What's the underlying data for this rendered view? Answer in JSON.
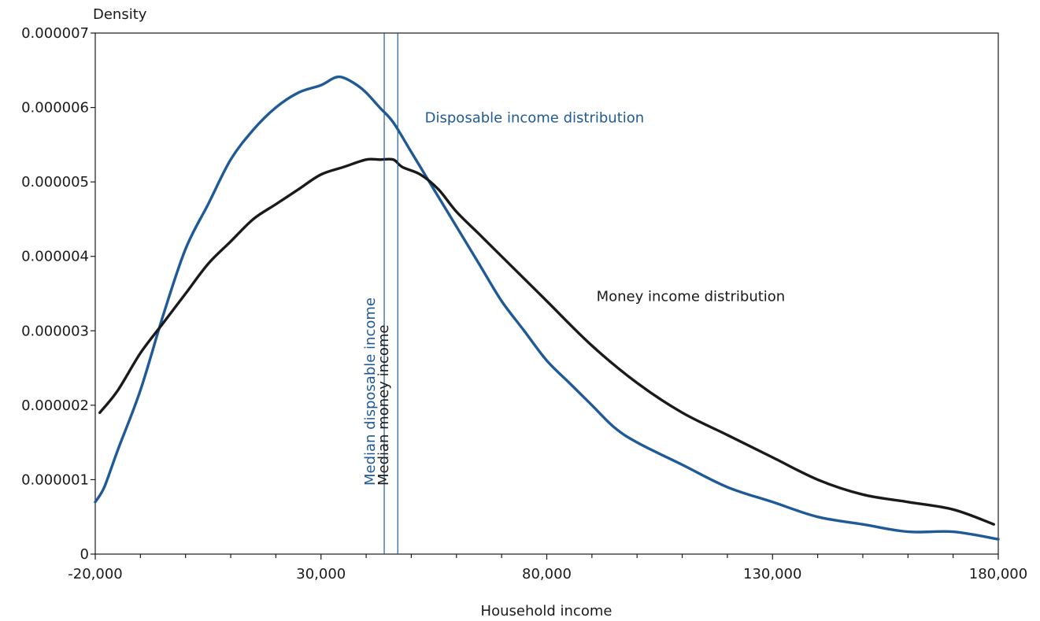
{
  "chart_data": {
    "type": "line",
    "title": "",
    "xlabel": "Household income",
    "ylabel": "Density",
    "xlim": [
      -20000,
      180000
    ],
    "ylim": [
      0,
      7e-06
    ],
    "x_ticks": [
      -20000,
      30000,
      80000,
      130000,
      180000
    ],
    "x_tick_labels": [
      "-20,000",
      "30,000",
      "80,000",
      "130,000",
      "180,000"
    ],
    "y_ticks": [
      0,
      1e-06,
      2e-06,
      3e-06,
      4e-06,
      5e-06,
      6e-06,
      7e-06
    ],
    "y_tick_labels": [
      "0",
      "0.000001",
      "0.000002",
      "0.000003",
      "0.000004",
      "0.000005",
      "0.000006",
      "0.000007"
    ],
    "grid": false,
    "legend": "none",
    "series": [
      {
        "name": "Disposable income distribution",
        "color": "#1f5a96",
        "x": [
          -20000,
          -18000,
          -15000,
          -10000,
          -5000,
          0,
          5000,
          10000,
          15000,
          20000,
          25000,
          30000,
          33000,
          35000,
          38000,
          40000,
          43000,
          46000,
          50000,
          55000,
          60000,
          65000,
          70000,
          75000,
          80000,
          85000,
          90000,
          95000,
          100000,
          110000,
          120000,
          130000,
          140000,
          150000,
          160000,
          170000,
          180000
        ],
        "y": [
          7e-07,
          9e-07,
          1.4e-06,
          2.2e-06,
          3.2e-06,
          4.1e-06,
          4.7e-06,
          5.3e-06,
          5.7e-06,
          6e-06,
          6.2e-06,
          6.3e-06,
          6.4e-06,
          6.4e-06,
          6.3e-06,
          6.2e-06,
          6e-06,
          5.8e-06,
          5.4e-06,
          4.9e-06,
          4.4e-06,
          3.9e-06,
          3.4e-06,
          3e-06,
          2.6e-06,
          2.3e-06,
          2e-06,
          1.7e-06,
          1.5e-06,
          1.2e-06,
          9e-07,
          7e-07,
          5e-07,
          4e-07,
          3e-07,
          3e-07,
          2e-07
        ]
      },
      {
        "name": "Money income distribution",
        "color": "#1a1a1a",
        "x": [
          -19000,
          -15000,
          -10000,
          -5000,
          0,
          5000,
          10000,
          15000,
          20000,
          25000,
          30000,
          35000,
          40000,
          43000,
          46000,
          48000,
          52000,
          56000,
          60000,
          65000,
          70000,
          75000,
          80000,
          90000,
          100000,
          110000,
          120000,
          130000,
          140000,
          150000,
          160000,
          170000,
          179000
        ],
        "y": [
          1.9e-06,
          2.2e-06,
          2.7e-06,
          3.1e-06,
          3.5e-06,
          3.9e-06,
          4.2e-06,
          4.5e-06,
          4.7e-06,
          4.9e-06,
          5.1e-06,
          5.2e-06,
          5.3e-06,
          5.3e-06,
          5.3e-06,
          5.2e-06,
          5.1e-06,
          4.9e-06,
          4.6e-06,
          4.3e-06,
          4e-06,
          3.7e-06,
          3.4e-06,
          2.8e-06,
          2.3e-06,
          1.9e-06,
          1.6e-06,
          1.3e-06,
          1e-06,
          8e-07,
          7e-07,
          6e-07,
          4e-07
        ]
      }
    ],
    "annotations": [
      {
        "text": "Disposable income distribution",
        "color": "#1f5a96",
        "x": 53000,
        "y": 5.8e-06
      },
      {
        "text": "Money income distribution",
        "color": "#1a1a1a",
        "x": 91000,
        "y": 3.4e-06
      }
    ],
    "vlines": [
      {
        "label": "Median disposable income",
        "x": 44000,
        "color": "#1f5a96",
        "label_color": "#1f5a96"
      },
      {
        "label": "Median money income",
        "x": 47000,
        "color": "#1f5a96",
        "label_color": "#1a1a1a"
      }
    ]
  }
}
